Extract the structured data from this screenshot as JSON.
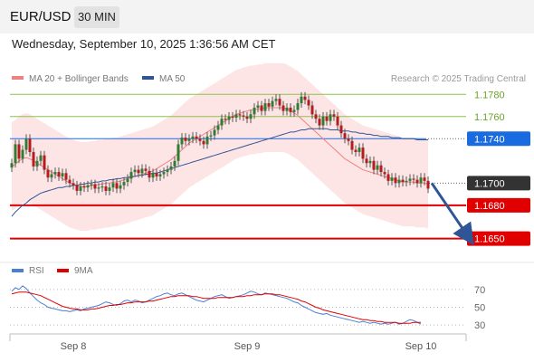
{
  "header": {
    "symbol": "EUR/USD",
    "timeframe": "30 MIN",
    "datetime": "Wednesday, September 10, 2025 1:36:56 AM CET"
  },
  "legend": {
    "items": [
      {
        "label": "MA 20 + Bollinger Bands",
        "color": "#f08080"
      },
      {
        "label": "MA 50",
        "color": "#2f5597"
      }
    ],
    "credit": "Research © 2025 Trading Central"
  },
  "rsi_legend": {
    "items": [
      {
        "label": "RSI",
        "color": "#4a7fd4"
      },
      {
        "label": "9MA",
        "color": "#e00000"
      }
    ]
  },
  "colors": {
    "candle_up": "#2e7d32",
    "candle_down": "#b71c1c",
    "ma20": "#f08080",
    "ma50": "#2f5597",
    "bollinger_fill": "#fddcdc",
    "resistance": "#8bc34a",
    "pivot": "#1a6be0",
    "support": "#e00000",
    "current": "#333333",
    "arrow": "#2f5597"
  },
  "chart_data": [
    {
      "type": "candlestick",
      "title": "EUR/USD 30 MIN",
      "ylim": [
        1.1635,
        1.179
      ],
      "x_ticks": [
        {
          "index": 17,
          "label": "Sep 8"
        },
        {
          "index": 65,
          "label": "Sep 9"
        },
        {
          "index": 113,
          "label": "Sep 10"
        }
      ],
      "levels": [
        {
          "value": 1.178,
          "label": "1.1780",
          "kind": "resistance"
        },
        {
          "value": 1.176,
          "label": "1.1760",
          "kind": "resistance"
        },
        {
          "value": 1.174,
          "label": "1.1740",
          "kind": "pivot"
        },
        {
          "value": 1.17,
          "label": "1.1700",
          "kind": "current"
        },
        {
          "value": 1.168,
          "label": "1.1680",
          "kind": "support"
        },
        {
          "value": 1.165,
          "label": "1.1650",
          "kind": "support"
        }
      ],
      "close": [
        1.1718,
        1.1735,
        1.1722,
        1.173,
        1.174,
        1.1728,
        1.1715,
        1.172,
        1.1725,
        1.1712,
        1.1705,
        1.1708,
        1.171,
        1.1706,
        1.1709,
        1.1703,
        1.17,
        1.1698,
        1.1693,
        1.1697,
        1.1696,
        1.1698,
        1.1699,
        1.1695,
        1.1696,
        1.1697,
        1.1693,
        1.1696,
        1.17,
        1.1695,
        1.1698,
        1.1701,
        1.1704,
        1.171,
        1.1712,
        1.1709,
        1.1713,
        1.1711,
        1.1705,
        1.1709,
        1.1706,
        1.1708,
        1.171,
        1.1712,
        1.1715,
        1.172,
        1.1735,
        1.1741,
        1.1738,
        1.174,
        1.1742,
        1.174,
        1.1738,
        1.1735,
        1.1742,
        1.1743,
        1.1748,
        1.1752,
        1.1758,
        1.1757,
        1.176,
        1.1759,
        1.1762,
        1.1761,
        1.176,
        1.1758,
        1.1762,
        1.1768,
        1.177,
        1.1765,
        1.1772,
        1.1769,
        1.1774,
        1.1776,
        1.177,
        1.1765,
        1.1768,
        1.1764,
        1.1766,
        1.1772,
        1.1778,
        1.1775,
        1.177,
        1.1762,
        1.1758,
        1.1752,
        1.176,
        1.1756,
        1.1762,
        1.176,
        1.1752,
        1.1745,
        1.174,
        1.1738,
        1.173,
        1.1728,
        1.1732,
        1.1722,
        1.1718,
        1.172,
        1.1712,
        1.1716,
        1.171,
        1.1708,
        1.1702,
        1.1705,
        1.17,
        1.1703,
        1.1701,
        1.1702,
        1.1704,
        1.1703,
        1.17,
        1.1705,
        1.1702,
        1.1695
      ],
      "ma20": [
        1.1715,
        1.1717,
        1.172,
        1.1722,
        1.1723,
        1.1722,
        1.172,
        1.1718,
        1.1716,
        1.1714,
        1.1712,
        1.171,
        1.1708,
        1.1706,
        1.1704,
        1.1702,
        1.17,
        1.1699,
        1.1698,
        1.1697,
        1.1697,
        1.1697,
        1.1698,
        1.1698,
        1.1699,
        1.1699,
        1.17,
        1.17,
        1.1701,
        1.1701,
        1.1702,
        1.1703,
        1.1704,
        1.1705,
        1.1706,
        1.1707,
        1.1708,
        1.1709,
        1.171,
        1.1711,
        1.1713,
        1.1715,
        1.1717,
        1.1719,
        1.1721,
        1.1724,
        1.1727,
        1.173,
        1.1733,
        1.1736,
        1.1738,
        1.174,
        1.1742,
        1.1744,
        1.1746,
        1.1748,
        1.175,
        1.1752,
        1.1754,
        1.1756,
        1.1758,
        1.176,
        1.1762,
        1.1763,
        1.1764,
        1.1765,
        1.1766,
        1.1766,
        1.1767,
        1.1767,
        1.1768,
        1.1768,
        1.1768,
        1.1768,
        1.1768,
        1.1768,
        1.1767,
        1.1765,
        1.1763,
        1.1761,
        1.1758,
        1.1755,
        1.1752,
        1.1749,
        1.1746,
        1.1743,
        1.174,
        1.1737,
        1.1734,
        1.1731,
        1.1728,
        1.1725,
        1.1722,
        1.172,
        1.1718,
        1.1716,
        1.1714,
        1.1712,
        1.1711,
        1.171,
        1.1709,
        1.1708,
        1.1707,
        1.1706,
        1.1705,
        1.1704,
        1.1703,
        1.1702,
        1.1701,
        1.1701,
        1.1701,
        1.1701,
        1.17,
        1.17,
        1.17,
        1.1699
      ],
      "ma50": [
        1.167,
        1.1674,
        1.1677,
        1.168,
        1.1682,
        1.1685,
        1.1687,
        1.1689,
        1.1691,
        1.1692,
        1.1693,
        1.1694,
        1.1695,
        1.1696,
        1.1696,
        1.1697,
        1.1697,
        1.1698,
        1.1698,
        1.1699,
        1.1699,
        1.17,
        1.17,
        1.1701,
        1.1701,
        1.1702,
        1.1702,
        1.1703,
        1.1703,
        1.1704,
        1.1704,
        1.1705,
        1.1705,
        1.1706,
        1.1706,
        1.1707,
        1.1707,
        1.1708,
        1.1708,
        1.1709,
        1.1709,
        1.171,
        1.1711,
        1.1712,
        1.1713,
        1.1714,
        1.1715,
        1.1716,
        1.1717,
        1.1718,
        1.1719,
        1.172,
        1.1721,
        1.1722,
        1.1723,
        1.1724,
        1.1725,
        1.1726,
        1.1727,
        1.1728,
        1.1729,
        1.173,
        1.1731,
        1.1732,
        1.1733,
        1.1734,
        1.1735,
        1.1736,
        1.1737,
        1.1738,
        1.1739,
        1.174,
        1.1741,
        1.1742,
        1.1743,
        1.1744,
        1.1745,
        1.1746,
        1.1746,
        1.1747,
        1.1748,
        1.1748,
        1.1749,
        1.1749,
        1.1749,
        1.1749,
        1.1749,
        1.1749,
        1.1748,
        1.1748,
        1.1748,
        1.1747,
        1.1747,
        1.1747,
        1.1746,
        1.1746,
        1.1745,
        1.1745,
        1.1744,
        1.1744,
        1.1743,
        1.1743,
        1.1742,
        1.1742,
        1.1742,
        1.1741,
        1.1741,
        1.1741,
        1.174,
        1.174,
        1.174,
        1.174,
        1.1739,
        1.1739,
        1.1739,
        1.1739
      ],
      "bb_width": 0.004,
      "forecast_arrow": {
        "from_index": 116,
        "from_value": 1.17,
        "to_index": 126,
        "to_value": 1.1652
      }
    },
    {
      "type": "line",
      "title": "RSI",
      "ylim": [
        22,
        80
      ],
      "y_ticks": [
        70,
        50,
        30
      ],
      "series": [
        {
          "name": "RSI",
          "values": [
            68,
            72,
            70,
            74,
            71,
            66,
            62,
            58,
            55,
            53,
            50,
            49,
            48,
            47,
            46,
            46,
            45,
            46,
            47,
            46,
            48,
            49,
            50,
            51,
            52,
            54,
            56,
            55,
            53,
            52,
            54,
            57,
            58,
            56,
            58,
            57,
            55,
            56,
            58,
            60,
            62,
            63,
            65,
            66,
            64,
            63,
            65,
            66,
            64,
            62,
            60,
            58,
            57,
            56,
            58,
            60,
            62,
            63,
            64,
            62,
            60,
            61,
            62,
            63,
            64,
            66,
            68,
            67,
            65,
            64,
            66,
            65,
            64,
            63,
            62,
            61,
            60,
            58,
            56,
            55,
            52,
            50,
            48,
            46,
            44,
            43,
            42,
            43,
            41,
            40,
            39,
            38,
            37,
            36,
            35,
            34,
            33,
            34,
            33,
            32,
            33,
            32,
            31,
            32,
            31,
            32,
            33,
            31,
            32,
            34,
            36,
            35,
            33,
            31
          ]
        },
        {
          "name": "9MA",
          "values": [
            65,
            66,
            67,
            67,
            67,
            66,
            65,
            64,
            63,
            61,
            59,
            57,
            55,
            53,
            51,
            50,
            49,
            48,
            48,
            47,
            47,
            47,
            48,
            48,
            49,
            50,
            51,
            52,
            52,
            53,
            53,
            54,
            55,
            55,
            56,
            56,
            56,
            56,
            57,
            57,
            58,
            59,
            60,
            61,
            62,
            62,
            63,
            63,
            63,
            63,
            62,
            62,
            61,
            60,
            60,
            60,
            60,
            61,
            61,
            61,
            61,
            61,
            62,
            62,
            62,
            63,
            63,
            64,
            64,
            64,
            65,
            65,
            65,
            64,
            64,
            63,
            62,
            61,
            60,
            59,
            57,
            56,
            54,
            52,
            50,
            49,
            47,
            46,
            45,
            44,
            43,
            42,
            41,
            40,
            39,
            38,
            37,
            36,
            36,
            35,
            35,
            34,
            34,
            33,
            33,
            33,
            33,
            32,
            32,
            32,
            32,
            33,
            33,
            33
          ]
        }
      ]
    }
  ]
}
